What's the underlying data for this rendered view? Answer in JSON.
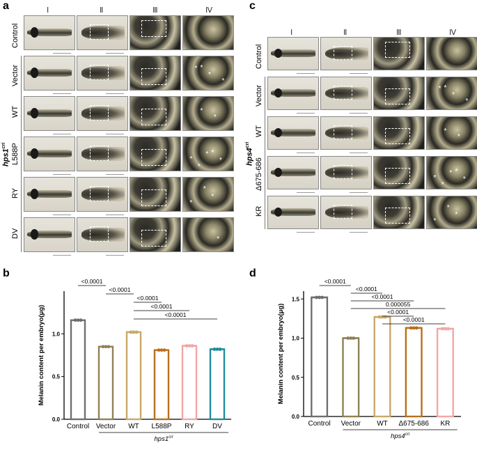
{
  "panels": {
    "a": {
      "letter": "a",
      "columns": [
        "Ⅰ",
        "Ⅱ",
        "Ⅲ",
        "Ⅳ"
      ],
      "rows": [
        "Control",
        "Vector",
        "WT",
        "L588P",
        "RY",
        "DV"
      ],
      "group_label": "hps1",
      "group_sup": "cri"
    },
    "c": {
      "letter": "c",
      "columns": [
        "Ⅰ",
        "Ⅱ",
        "Ⅲ",
        "Ⅳ"
      ],
      "rows": [
        "Control",
        "Vector",
        "WT",
        "Δ675-686",
        "KR"
      ],
      "group_label": "hps4",
      "group_sup": "cri"
    },
    "b": {
      "letter": "b"
    },
    "d": {
      "letter": "d"
    }
  },
  "chart_data": [
    {
      "type": "bar",
      "panel": "b",
      "ylabel": "Melanin content per embryo(μg)",
      "ylim": [
        0,
        1.5
      ],
      "yticks": [
        "0.0",
        "0.5",
        "1.0"
      ],
      "categories": [
        "Control",
        "Vector",
        "WT",
        "L588P",
        "RY",
        "DV"
      ],
      "values": [
        1.16,
        0.85,
        1.02,
        0.81,
        0.86,
        0.82
      ],
      "colors": [
        "#6f6f6f",
        "#8f8155",
        "#c9a868",
        "#b86f1a",
        "#f2a6a6",
        "#1f8c9c"
      ],
      "group_label": "hps1",
      "group_sup": "cri",
      "comparisons": [
        {
          "from": 0,
          "to": 1,
          "label": "<0.0001"
        },
        {
          "from": 1,
          "to": 2,
          "label": "<0.0001"
        },
        {
          "from": 2,
          "to": 3,
          "label": "<0.0001"
        },
        {
          "from": 2,
          "to": 4,
          "label": "<0.0001"
        },
        {
          "from": 2,
          "to": 5,
          "label": "<0.0001"
        }
      ]
    },
    {
      "type": "bar",
      "panel": "d",
      "ylabel": "Melanin content per embryo(μg)",
      "ylim": [
        0,
        1.6
      ],
      "yticks": [
        "0.0",
        "0.5",
        "1.0",
        "1.5"
      ],
      "categories": [
        "Control",
        "Vector",
        "WT",
        "Δ675-686",
        "KR"
      ],
      "values": [
        1.52,
        1.0,
        1.27,
        1.13,
        1.12
      ],
      "colors": [
        "#6f6f6f",
        "#8f8155",
        "#c9a868",
        "#b86f1a",
        "#f2a6a6"
      ],
      "group_label": "hps4",
      "group_sup": "cri",
      "comparisons": [
        {
          "from": 0,
          "to": 1,
          "label": "<0.0001"
        },
        {
          "from": 1,
          "to": 2,
          "label": "<0.0001"
        },
        {
          "from": 1,
          "to": 3,
          "label": "<0.0001"
        },
        {
          "from": 1,
          "to": 4,
          "label": "0.000055"
        },
        {
          "from": 2,
          "to": 3,
          "label": "<0.0001"
        },
        {
          "from": 2,
          "to": 4,
          "label": "<0.0001"
        }
      ]
    }
  ]
}
